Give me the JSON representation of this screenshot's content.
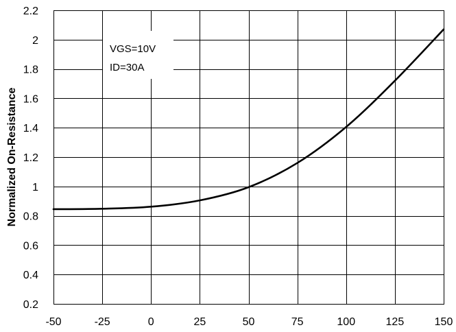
{
  "chart_data": {
    "type": "line",
    "title": "",
    "xlabel": "",
    "ylabel": "Normalized On-Resistance",
    "xlim": [
      -50,
      150
    ],
    "ylim": [
      0.2,
      2.2
    ],
    "x_ticks": [
      -50,
      -25,
      0,
      25,
      50,
      75,
      100,
      125,
      150
    ],
    "y_ticks": [
      0.2,
      0.4,
      0.6,
      0.8,
      1,
      1.2,
      1.4,
      1.6,
      1.8,
      2,
      2.2
    ],
    "grid": true,
    "annotations": [
      "VGS=10V",
      "ID=30A"
    ],
    "series": [
      {
        "x": [
          -50,
          -25,
          0,
          25,
          50,
          75,
          100,
          125,
          150
        ],
        "y": [
          0.845,
          0.848,
          0.862,
          0.905,
          0.995,
          1.16,
          1.405,
          1.72,
          2.07
        ]
      }
    ],
    "colors": {
      "line": "#000000",
      "grid": "#000000",
      "background": "#ffffff"
    }
  }
}
